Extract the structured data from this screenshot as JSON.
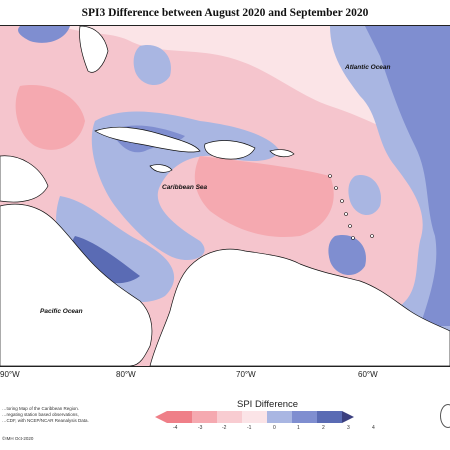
{
  "title": "SPI3 Difference between August 2020 and September 2020",
  "labels": {
    "atlantic": "Atlantic Ocean",
    "caribbean": "Caribbean Sea",
    "pacific": "Pacific Ocean"
  },
  "longitudes": [
    "90°W",
    "80°W",
    "70°W",
    "60°W"
  ],
  "legend": {
    "title": "SPI Difference",
    "ticks": [
      "-4",
      "-3",
      "-2",
      "-1",
      "0",
      "1",
      "2",
      "3",
      "4"
    ],
    "colors": [
      "#ef7f88",
      "#f5a9b0",
      "#f8ccd1",
      "#fbe4e7",
      "#d4e4ee",
      "#a9b6e2",
      "#7f8ed0",
      "#5a6bb4",
      "#3b3f7f"
    ]
  },
  "footer": {
    "line1": "…toring Map of the Caribbean Region.",
    "line2": "…regating station based observations,",
    "line3": "…CDF, with NCEP/NCAR Reanalysis Data.",
    "credit": "©IMH Oct-2020"
  }
}
